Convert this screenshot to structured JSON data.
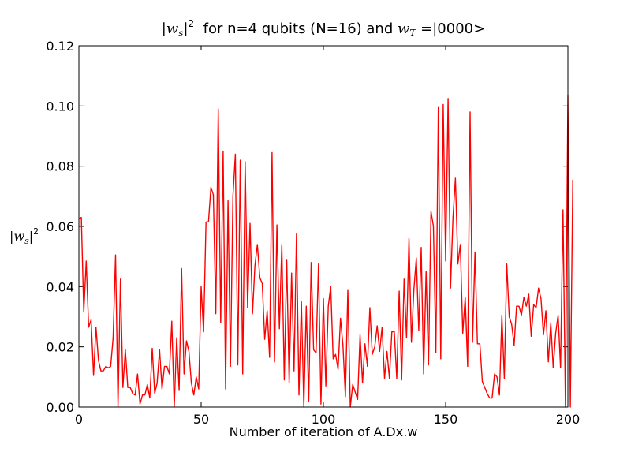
{
  "chart_data": {
    "type": "line",
    "title": {
      "part1": "|w",
      "part1_sub": "s",
      "part1_close": "|",
      "part1_sup": "2",
      "part2": "  for n=4 qubits (N=16) and ",
      "part3": "w",
      "part3_sub": "T",
      "part4": " =",
      "part5": "|0000>"
    },
    "xlabel": "Number of iteration of A.Dx.w",
    "ylabel": {
      "base": "|w",
      "sub": "s",
      "close": "|",
      "sup": "2"
    },
    "xlim": [
      0,
      200
    ],
    "ylim": [
      0,
      0.12
    ],
    "x_ticks": [
      0,
      50,
      100,
      150,
      200
    ],
    "x_tick_labels": [
      "0",
      "50",
      "100",
      "150",
      "200"
    ],
    "y_ticks": [
      0,
      0.02,
      0.04,
      0.06,
      0.08,
      0.1,
      0.12
    ],
    "y_tick_labels": [
      "0.00",
      "0.02",
      "0.04",
      "0.06",
      "0.08",
      "0.10",
      "0.12"
    ],
    "grid": false,
    "series": [
      {
        "color": "#ff0000",
        "values": [
          0.0625,
          0.063,
          0.0315,
          0.0485,
          0.0265,
          0.029,
          0.0105,
          0.0265,
          0.0155,
          0.012,
          0.012,
          0.0135,
          0.013,
          0.0135,
          0.023,
          0.0505,
          0.0,
          0.0425,
          0.0065,
          0.019,
          0.0065,
          0.0065,
          0.0045,
          0.004,
          0.011,
          0.001,
          0.004,
          0.004,
          0.0075,
          0.003,
          0.0195,
          0.0045,
          0.008,
          0.019,
          0.006,
          0.0135,
          0.0135,
          0.011,
          0.0285,
          0.0,
          0.023,
          0.0055,
          0.046,
          0.011,
          0.022,
          0.0185,
          0.008,
          0.004,
          0.01,
          0.006,
          0.04,
          0.025,
          0.0615,
          0.0615,
          0.073,
          0.0705,
          0.031,
          0.099,
          0.028,
          0.085,
          0.006,
          0.0685,
          0.0135,
          0.07,
          0.084,
          0.014,
          0.082,
          0.011,
          0.0815,
          0.033,
          0.061,
          0.031,
          0.047,
          0.054,
          0.043,
          0.041,
          0.0225,
          0.032,
          0.0165,
          0.0845,
          0.015,
          0.0605,
          0.026,
          0.054,
          0.009,
          0.049,
          0.008,
          0.0445,
          0.012,
          0.0575,
          0.004,
          0.035,
          0.0,
          0.0335,
          0.002,
          0.048,
          0.019,
          0.018,
          0.0475,
          0.001,
          0.036,
          0.007,
          0.0335,
          0.04,
          0.016,
          0.0175,
          0.0125,
          0.0295,
          0.0205,
          0.0035,
          0.039,
          0.0,
          0.0075,
          0.005,
          0.0025,
          0.024,
          0.008,
          0.021,
          0.0135,
          0.033,
          0.0175,
          0.02,
          0.027,
          0.0185,
          0.0265,
          0.0095,
          0.0185,
          0.0095,
          0.025,
          0.025,
          0.0095,
          0.0385,
          0.009,
          0.0425,
          0.023,
          0.056,
          0.0215,
          0.039,
          0.0495,
          0.0255,
          0.053,
          0.011,
          0.045,
          0.014,
          0.065,
          0.06,
          0.018,
          0.0995,
          0.016,
          0.1005,
          0.0485,
          0.1025,
          0.0395,
          0.063,
          0.076,
          0.0475,
          0.054,
          0.0245,
          0.0365,
          0.0135,
          0.098,
          0.0215,
          0.0515,
          0.021,
          0.021,
          0.0085,
          0.0065,
          0.0045,
          0.003,
          0.003,
          0.011,
          0.01,
          0.004,
          0.0305,
          0.0095,
          0.0475,
          0.03,
          0.0275,
          0.0205,
          0.0335,
          0.0335,
          0.0305,
          0.0365,
          0.0335,
          0.0375,
          0.0235,
          0.034,
          0.033,
          0.0395,
          0.036,
          0.024,
          0.032,
          0.015,
          0.028,
          0.013,
          0.0245,
          0.0305,
          0.013,
          0.0655,
          0.0,
          0.1035,
          0.0,
          0.0755
        ]
      }
    ]
  }
}
